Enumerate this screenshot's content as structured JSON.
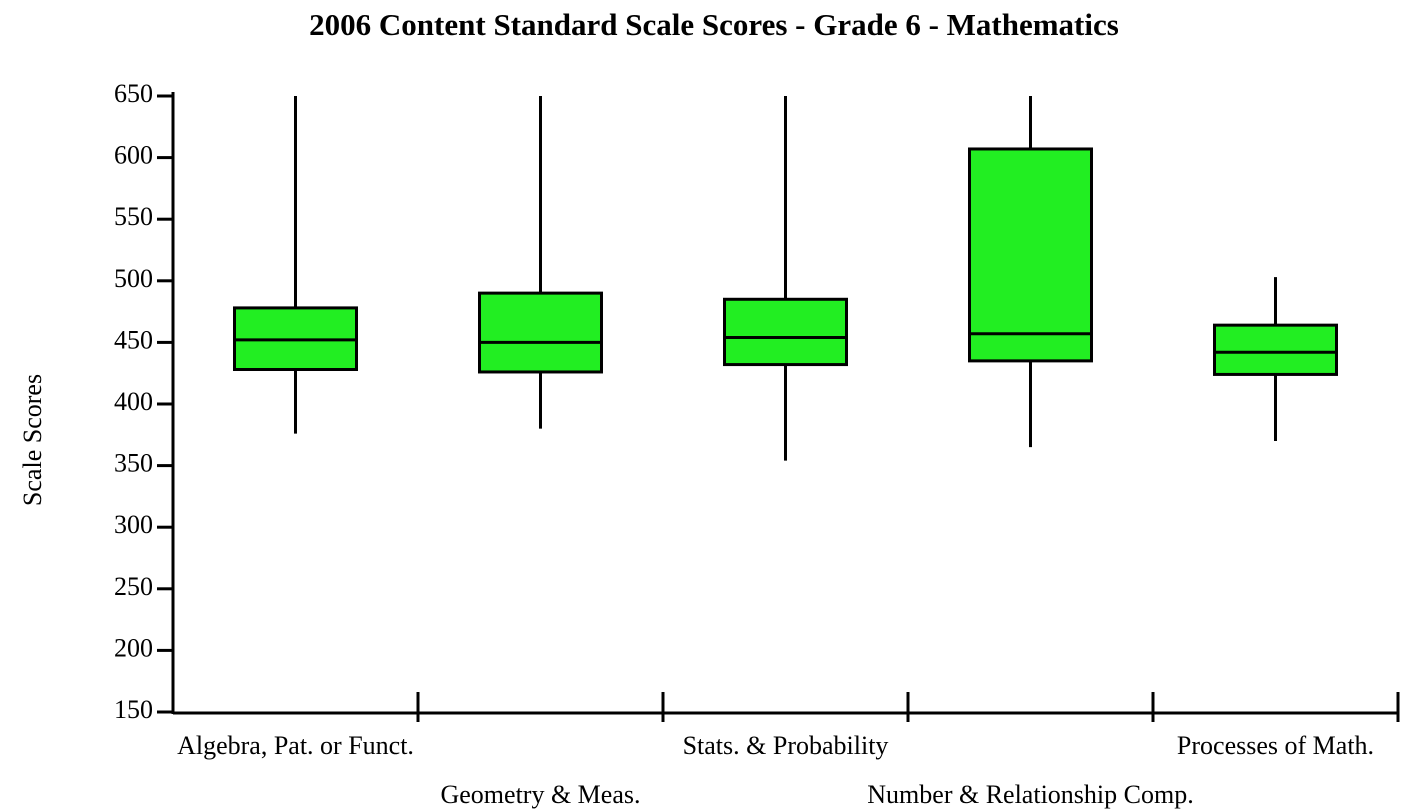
{
  "chart_data": {
    "type": "box",
    "title": "2006 Content Standard Scale Scores - Grade 6 - Mathematics",
    "y_label": "Scale Scores",
    "categories": [
      "Algebra, Pat. or Funct.",
      "Geometry & Meas.",
      "Stats. & Probability",
      "Number & Relationship Comp.",
      "Processes of Math."
    ],
    "min": [
      376,
      380,
      354,
      365,
      370
    ],
    "q1": [
      428,
      426,
      432,
      435,
      424
    ],
    "median": [
      452,
      450,
      454,
      457,
      442
    ],
    "q3": [
      478,
      490,
      485,
      607,
      464
    ],
    "max": [
      650,
      650,
      650,
      650,
      503
    ],
    "color": "#22ee22",
    "ylim": [
      150,
      650
    ],
    "yticks": [
      150,
      200,
      250,
      300,
      350,
      400,
      450,
      500,
      550,
      600,
      650
    ]
  }
}
